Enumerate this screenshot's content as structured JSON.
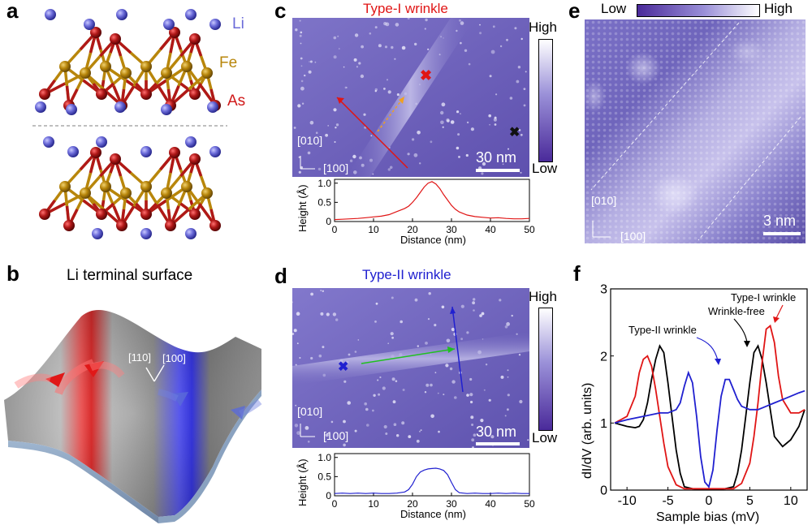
{
  "panel_labels": {
    "a": "a",
    "b": "b",
    "c": "c",
    "d": "d",
    "e": "e",
    "f": "f"
  },
  "panel_a": {
    "species": [
      "Li",
      "Fe",
      "As"
    ],
    "colors": {
      "Li": "#6a6ad8",
      "Fe": "#b8860b",
      "As": "#b01818"
    }
  },
  "panel_b": {
    "title": "Li terminal surface",
    "dir_110": "[110]",
    "dir_100": "[100]"
  },
  "panel_c": {
    "title": "Type-I wrinkle",
    "title_color": "#e01515",
    "colorbar_high": "High",
    "colorbar_low": "Low",
    "axis_010": "[010]",
    "axis_100": "[100]",
    "scalebar": "30 nm",
    "ylabel": "Height (Å)",
    "xlabel": "Distance (nm)",
    "xticks": [
      "0",
      "10",
      "20",
      "30",
      "40",
      "50"
    ],
    "yticks": [
      "0",
      "0.5",
      "1.0"
    ]
  },
  "panel_d": {
    "title": "Type-II wrinkle",
    "title_color": "#2020d0",
    "colorbar_high": "High",
    "colorbar_low": "Low",
    "axis_010": "[010]",
    "axis_100": "[100]",
    "scalebar": "30 nm",
    "ylabel": "Height (Å)",
    "xlabel": "Distance (nm)",
    "xticks": [
      "0",
      "10",
      "20",
      "30",
      "40",
      "50"
    ],
    "yticks": [
      "0",
      "0.5",
      "1.0"
    ]
  },
  "panel_e": {
    "colorbar_low": "Low",
    "colorbar_high": "High",
    "axis_010": "[010]",
    "axis_100": "[100]",
    "scalebar": "3 nm"
  },
  "panel_f": {
    "ylabel": "dI/dV (arb. units)",
    "xlabel": "Sample bias (mV)",
    "xticks": [
      "-10",
      "-5",
      "0",
      "5",
      "10"
    ],
    "yticks": [
      "0",
      "1",
      "2",
      "3"
    ],
    "annot_type1": "Type-I wrinkle",
    "annot_free": "Wrinkle-free",
    "annot_type2": "Type-II wrinkle"
  },
  "chart_data": [
    {
      "type": "line",
      "panel": "c",
      "xlabel": "Distance (nm)",
      "ylabel": "Height (Å)",
      "xlim": [
        0,
        50
      ],
      "ylim": [
        0,
        1.1
      ],
      "series": [
        {
          "color": "#e01515",
          "x": [
            0,
            2,
            4,
            6,
            8,
            10,
            12,
            14,
            16,
            18,
            19,
            20,
            21,
            22,
            23,
            24,
            25,
            26,
            27,
            28,
            29,
            30,
            31,
            32,
            34,
            36,
            38,
            40,
            42,
            44,
            46,
            48,
            50
          ],
          "y": [
            0.05,
            0.06,
            0.07,
            0.08,
            0.1,
            0.12,
            0.14,
            0.18,
            0.26,
            0.34,
            0.4,
            0.5,
            0.62,
            0.76,
            0.9,
            1.0,
            1.04,
            0.98,
            0.86,
            0.7,
            0.56,
            0.42,
            0.32,
            0.25,
            0.17,
            0.13,
            0.11,
            0.09,
            0.1,
            0.08,
            0.07,
            0.07,
            0.08
          ]
        }
      ]
    },
    {
      "type": "line",
      "panel": "d",
      "xlabel": "Distance (nm)",
      "ylabel": "Height (Å)",
      "xlim": [
        0,
        50
      ],
      "ylim": [
        0,
        1.1
      ],
      "series": [
        {
          "color": "#2020d0",
          "x": [
            0,
            2,
            4,
            6,
            8,
            10,
            12,
            14,
            16,
            18,
            19,
            20,
            21,
            22,
            23,
            24,
            25,
            26,
            27,
            28,
            29,
            30,
            31,
            32,
            34,
            36,
            38,
            40,
            42,
            44,
            46,
            48,
            50
          ],
          "y": [
            0.06,
            0.07,
            0.06,
            0.07,
            0.06,
            0.07,
            0.06,
            0.06,
            0.07,
            0.1,
            0.16,
            0.3,
            0.5,
            0.62,
            0.67,
            0.7,
            0.71,
            0.72,
            0.7,
            0.66,
            0.55,
            0.35,
            0.16,
            0.08,
            0.06,
            0.07,
            0.06,
            0.06,
            0.07,
            0.06,
            0.07,
            0.06,
            0.06
          ]
        }
      ]
    },
    {
      "type": "line",
      "panel": "f",
      "xlabel": "Sample bias (mV)",
      "ylabel": "dI/dV (arb. units)",
      "xlim": [
        -12,
        12
      ],
      "ylim": [
        0,
        3
      ],
      "series": [
        {
          "name": "Wrinkle-free",
          "color": "#000000",
          "x": [
            -11.5,
            -10,
            -9,
            -8.5,
            -8,
            -7.5,
            -7,
            -6.5,
            -6,
            -5.5,
            -5,
            -4.5,
            -4,
            -3.5,
            -3,
            -2,
            -1,
            0,
            1,
            2,
            3,
            3.5,
            4,
            4.5,
            5,
            5.5,
            6,
            6.5,
            7,
            7.5,
            8,
            9,
            10,
            11,
            11.7
          ],
          "y": [
            1.0,
            0.95,
            0.93,
            0.95,
            1.05,
            1.3,
            1.65,
            1.95,
            2.15,
            2.05,
            1.6,
            1.1,
            0.6,
            0.25,
            0.05,
            0.02,
            0.01,
            0.01,
            0.01,
            0.02,
            0.05,
            0.25,
            0.6,
            1.1,
            1.6,
            2.05,
            2.15,
            1.95,
            1.6,
            1.2,
            0.8,
            0.65,
            0.75,
            0.95,
            1.2
          ]
        },
        {
          "name": "Type-I wrinkle",
          "color": "#e01515",
          "x": [
            -11.5,
            -10,
            -9,
            -8.5,
            -8,
            -7.5,
            -7,
            -6.5,
            -6,
            -5.5,
            -5,
            -4,
            -3,
            -2,
            -1,
            0,
            1,
            2,
            3,
            4,
            5,
            5.5,
            6,
            6.5,
            7,
            7.5,
            8,
            8.5,
            9,
            10,
            11,
            11.7
          ],
          "y": [
            1.0,
            1.1,
            1.4,
            1.75,
            1.95,
            2.0,
            1.85,
            1.5,
            1.1,
            0.7,
            0.35,
            0.08,
            0.02,
            0.02,
            0.02,
            0.02,
            0.02,
            0.02,
            0.02,
            0.1,
            0.4,
            0.8,
            1.3,
            1.9,
            2.4,
            2.45,
            2.2,
            1.7,
            1.35,
            1.15,
            1.15,
            1.2
          ]
        },
        {
          "name": "Type-II wrinkle",
          "color": "#2020d0",
          "x": [
            -11.5,
            -10,
            -8,
            -6,
            -5,
            -4,
            -3.5,
            -3,
            -2.5,
            -2,
            -1.5,
            -1,
            -0.5,
            0,
            0.5,
            1,
            1.5,
            2,
            2.5,
            3,
            3.5,
            4,
            5,
            6,
            7,
            8,
            9,
            10,
            11,
            11.7
          ],
          "y": [
            1.0,
            1.05,
            1.1,
            1.15,
            1.15,
            1.2,
            1.3,
            1.55,
            1.75,
            1.6,
            1.1,
            0.5,
            0.12,
            0.05,
            0.3,
            0.9,
            1.4,
            1.65,
            1.65,
            1.5,
            1.35,
            1.25,
            1.2,
            1.2,
            1.25,
            1.3,
            1.35,
            1.4,
            1.45,
            1.48
          ]
        }
      ]
    }
  ]
}
